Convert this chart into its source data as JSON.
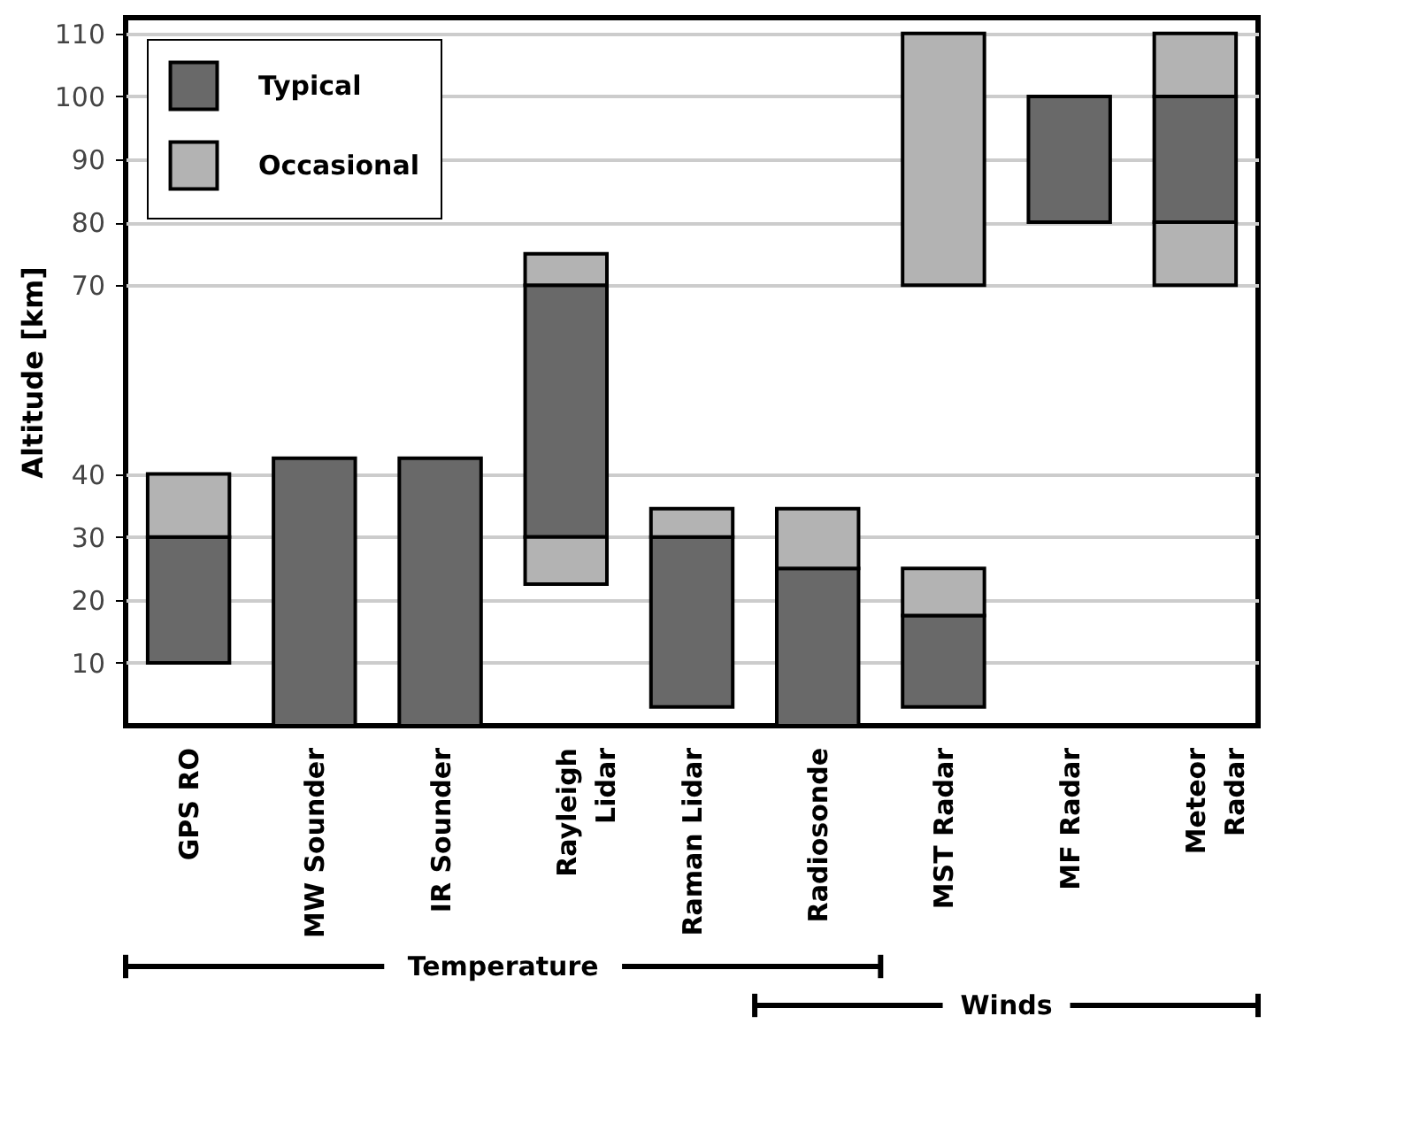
{
  "chart_data": {
    "type": "bar",
    "ylabel": "Altitude [km]",
    "categories": [
      "GPS RO",
      "MW Sounder",
      "IR Sounder",
      "Rayleigh Lidar",
      "Raman Lidar",
      "Radiosonde",
      "MST Radar",
      "MF Radar",
      "Meteor Radar"
    ],
    "series": [
      {
        "name": "Typical",
        "color": "#696969",
        "base": [
          10,
          0,
          0,
          30,
          3,
          0,
          3,
          80,
          80
        ],
        "values": [
          20,
          42.5,
          42.5,
          40,
          27,
          25,
          14.5,
          20,
          20
        ]
      },
      {
        "name": "Occasional",
        "color": "#b3b3b3",
        "base": [
          null,
          null,
          null,
          22.5,
          null,
          null,
          70,
          null,
          70
        ],
        "values": [
          null,
          null,
          null,
          7.5,
          null,
          null,
          40,
          null,
          10
        ]
      },
      {
        "color": "#b3b3b3",
        "base": [
          30,
          null,
          null,
          70,
          30,
          25,
          17.5,
          null,
          100
        ],
        "values": [
          10,
          null,
          null,
          5,
          4.5,
          9.5,
          7.5,
          null,
          10
        ]
      }
    ],
    "ylim": [
      0,
      112.5
    ],
    "yticks": [
      10,
      20,
      30,
      40,
      70,
      80,
      90,
      100,
      110
    ],
    "grid": "y",
    "legend": "top left",
    "annotations": [
      "Temperature",
      "Winds"
    ]
  }
}
